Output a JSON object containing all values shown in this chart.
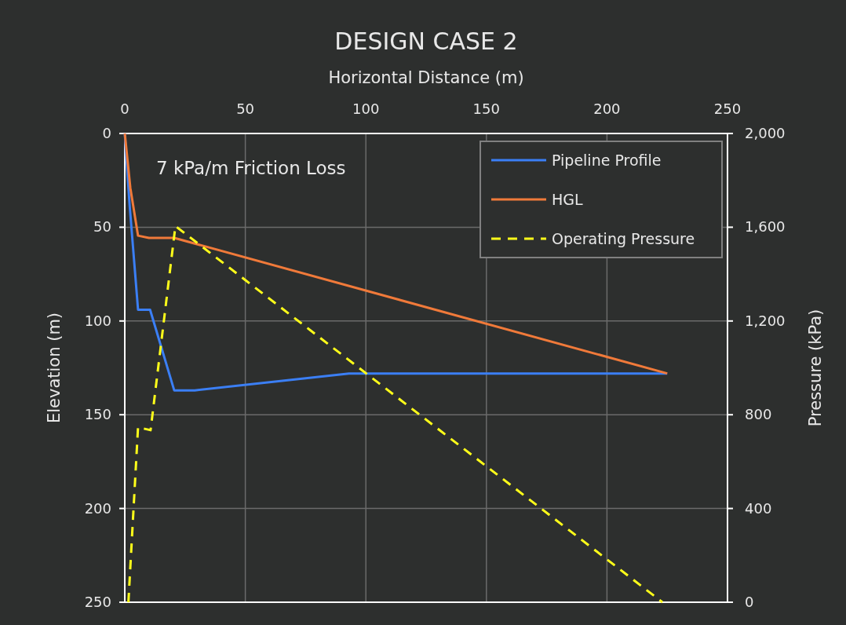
{
  "chart_data": {
    "type": "line",
    "title": "DESIGN CASE 2",
    "xlabel": "Horizontal Distance (m)",
    "ylabel": "Elevation (m)",
    "y2label": "Pressure (kPa)",
    "annotations": [
      "7 kPa/m Friction Loss"
    ],
    "xlim": [
      0,
      250
    ],
    "xticks": [
      0,
      50,
      100,
      150,
      200,
      250
    ],
    "ylim": [
      250,
      0
    ],
    "yticks": [
      0,
      50,
      100,
      150,
      200,
      250
    ],
    "y2lim": [
      0,
      2000
    ],
    "y2ticks": [
      {
        "value": 0,
        "label": "0"
      },
      {
        "value": 400,
        "label": "400"
      },
      {
        "value": 800,
        "label": "800"
      },
      {
        "value": 1200,
        "label": "1,200"
      },
      {
        "value": 1600,
        "label": "1,600"
      },
      {
        "value": 2000,
        "label": "2,000"
      }
    ],
    "grid": true,
    "legend": "top right",
    "series": [
      {
        "name": "Pipeline Profile",
        "color": "#3b7ff5",
        "line_style": "solid",
        "x": [
          0,
          2,
          5.5,
          10.5,
          20.5,
          29,
          93,
          225
        ],
        "values": [
          0,
          38,
          94,
          94,
          137,
          137,
          128,
          128
        ]
      },
      {
        "name": "HGL",
        "color": "#f07a3a",
        "line_style": "solid",
        "x": [
          0,
          2.3,
          5.5,
          10,
          20.5,
          225
        ],
        "values": [
          0,
          29,
          54.5,
          55.7,
          55.7,
          128
        ]
      },
      {
        "name": "Operating Pressure",
        "color": "#ffff1a",
        "line_style": "dashed",
        "axis": "y2",
        "x": [
          1.5,
          5.5,
          10.7,
          21,
          223
        ],
        "values": [
          0,
          747,
          734,
          1605,
          0
        ]
      }
    ]
  }
}
